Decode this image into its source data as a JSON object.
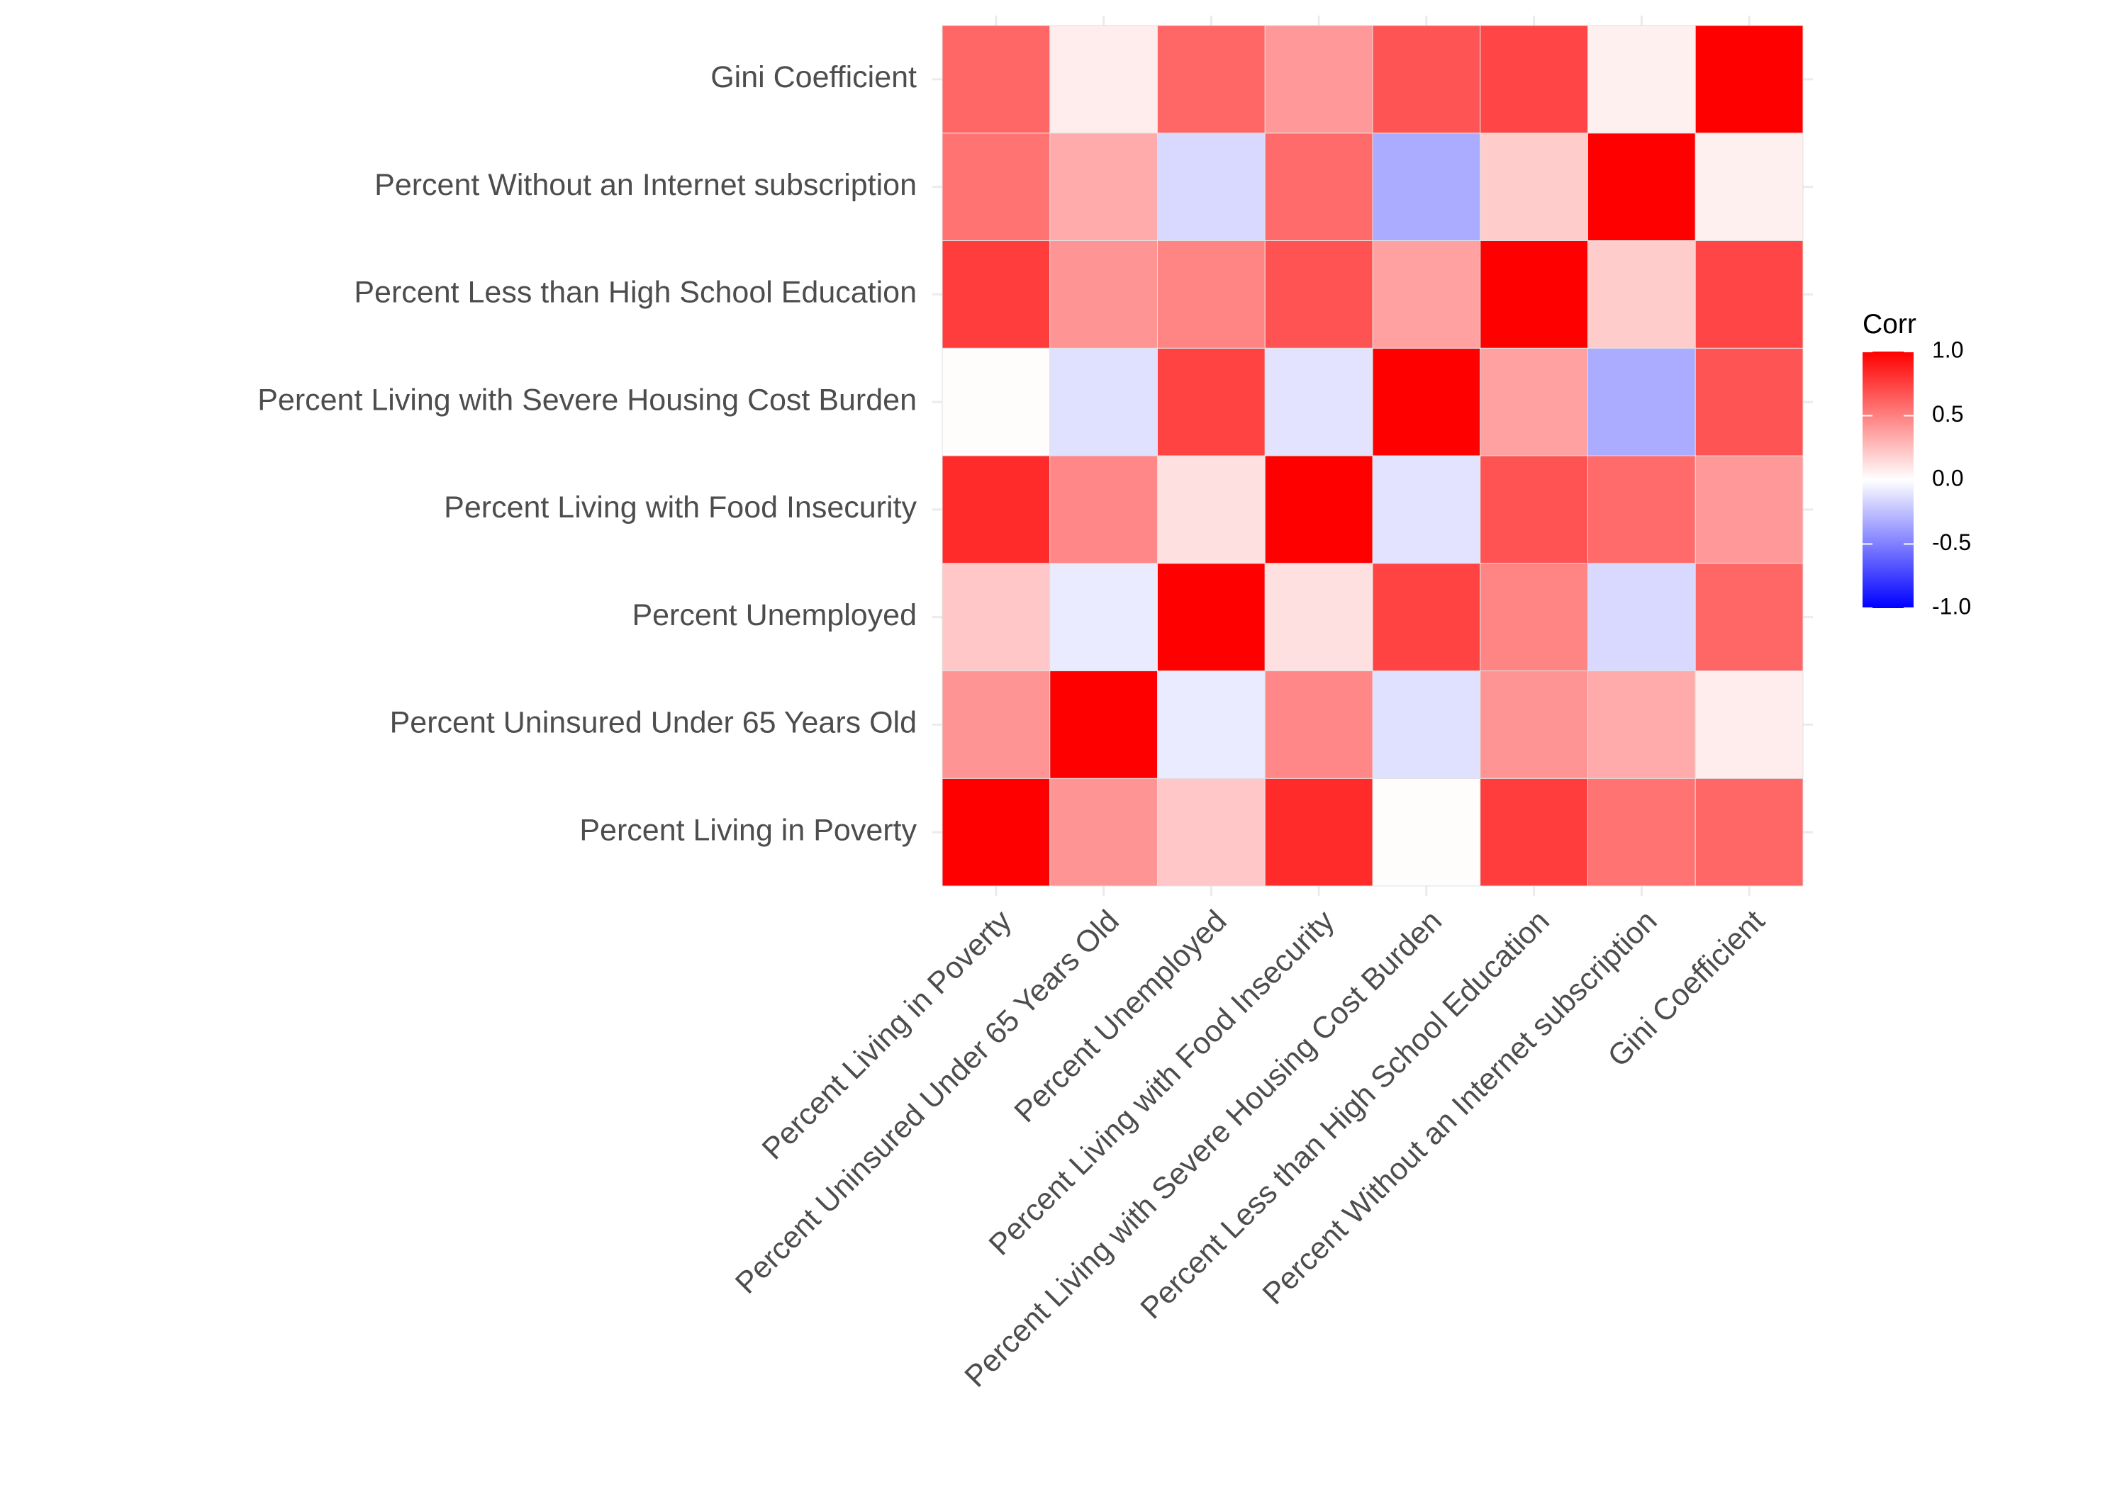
{
  "chart_data": {
    "type": "heatmap",
    "title": "",
    "xlabel": "",
    "ylabel": "",
    "variables": [
      "Percent Living in Poverty",
      "Percent Uninsured Under 65 Years Old",
      "Percent Unemployed",
      "Percent Living with Food Insecurity",
      "Percent Living with Severe Housing Cost Burden",
      "Percent Less than High School Education",
      "Percent Without an Internet subscription",
      "Gini Coefficient"
    ],
    "matrix": [
      [
        1.0,
        0.42,
        0.22,
        0.83,
        0.01,
        0.76,
        0.55,
        0.6
      ],
      [
        0.42,
        1.0,
        -0.08,
        0.47,
        -0.12,
        0.42,
        0.33,
        0.07
      ],
      [
        0.22,
        -0.08,
        1.0,
        0.12,
        0.74,
        0.48,
        -0.15,
        0.6
      ],
      [
        0.83,
        0.47,
        0.12,
        1.0,
        -0.11,
        0.68,
        0.58,
        0.4
      ],
      [
        0.01,
        -0.12,
        0.74,
        -0.11,
        1.0,
        0.37,
        -0.33,
        0.67
      ],
      [
        0.76,
        0.42,
        0.48,
        0.68,
        0.37,
        1.0,
        0.2,
        0.73
      ],
      [
        0.55,
        0.33,
        -0.15,
        0.58,
        -0.33,
        0.2,
        1.0,
        0.06
      ],
      [
        0.6,
        0.07,
        0.6,
        0.4,
        0.67,
        0.73,
        0.06,
        1.0
      ]
    ],
    "color_scale": {
      "low": "#0000ff",
      "mid": "#ffffff",
      "high": "#ff0000",
      "limits": [
        -1,
        1
      ]
    },
    "legend": {
      "title": "Corr",
      "ticks": [
        "1.0",
        "0.5",
        "0.0",
        "-0.5",
        "-1.0"
      ],
      "placement": "right"
    },
    "grid": true,
    "background": "#ffffff",
    "grid_color": "#ebebeb",
    "text_color": "#4d4d4d"
  }
}
